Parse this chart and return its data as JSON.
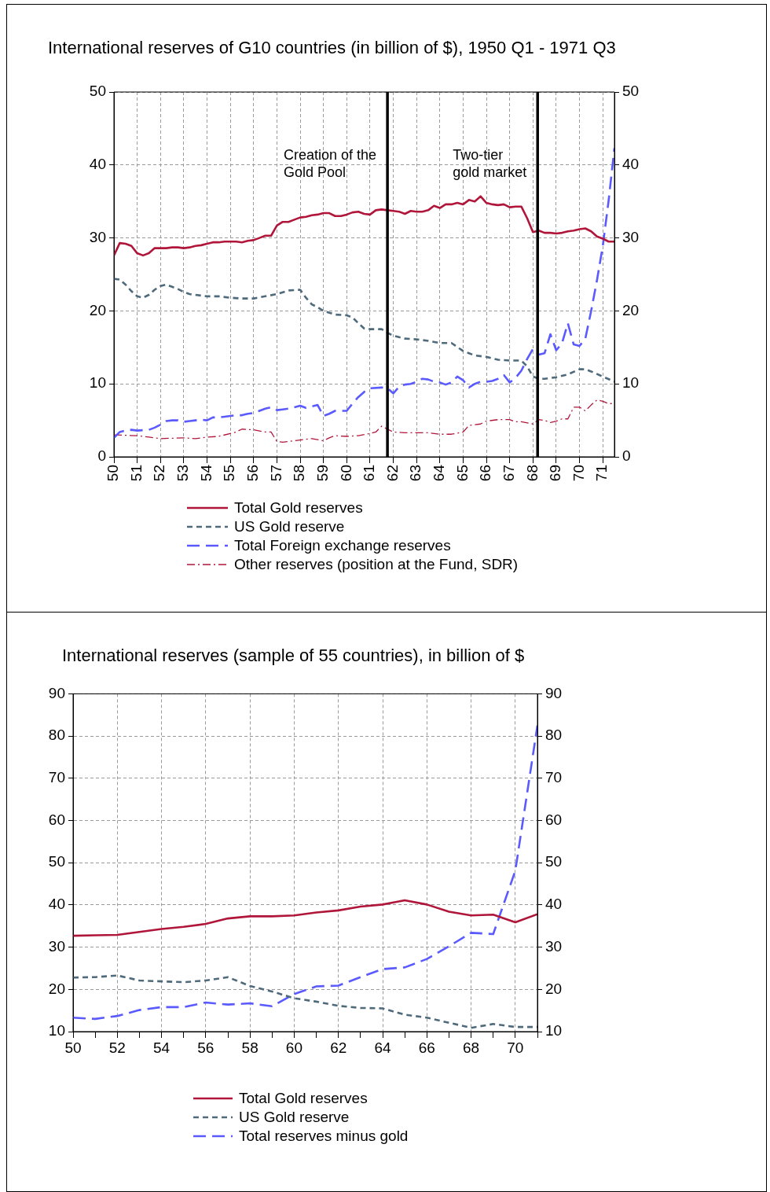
{
  "chart_data": [
    {
      "type": "line",
      "title": "International reserves of G10 countries (in billion of $), 1950 Q1 - 1971 Q3",
      "xlim": [
        1950,
        1971.5
      ],
      "xticks": [
        {
          "value": 1950,
          "label": "50"
        },
        {
          "value": 1951,
          "label": "51"
        },
        {
          "value": 1952,
          "label": "52"
        },
        {
          "value": 1953,
          "label": "53"
        },
        {
          "value": 1954,
          "label": "54"
        },
        {
          "value": 1955,
          "label": "55"
        },
        {
          "value": 1956,
          "label": "56"
        },
        {
          "value": 1957,
          "label": "57"
        },
        {
          "value": 1958,
          "label": "58"
        },
        {
          "value": 1959,
          "label": "59"
        },
        {
          "value": 1960,
          "label": "60"
        },
        {
          "value": 1961,
          "label": "61"
        },
        {
          "value": 1962,
          "label": "62"
        },
        {
          "value": 1963,
          "label": "63"
        },
        {
          "value": 1964,
          "label": "64"
        },
        {
          "value": 1965,
          "label": "65"
        },
        {
          "value": 1966,
          "label": "66"
        },
        {
          "value": 1967,
          "label": "67"
        },
        {
          "value": 1968,
          "label": "68"
        },
        {
          "value": 1969,
          "label": "69"
        },
        {
          "value": 1970,
          "label": "70"
        },
        {
          "value": 1971,
          "label": "71"
        }
      ],
      "ylim": [
        0,
        50
      ],
      "yticks": [
        0,
        10,
        20,
        30,
        40,
        50
      ],
      "y2lim": [
        0,
        50
      ],
      "y2ticks": [
        0,
        10,
        20,
        30,
        40,
        50
      ],
      "grid": true,
      "legend": "bottom",
      "ref_lines": [
        {
          "axis": "x",
          "value": 1961.75,
          "label": "Creation of the\nGold Pool",
          "color": "#000000"
        },
        {
          "axis": "x",
          "value": 1968.2,
          "label": "Two-tier\ngold market",
          "color": "#000000"
        }
      ],
      "series": [
        {
          "name": "Total Gold reserves",
          "color": "#b0163a",
          "line_style": "solid",
          "x": [
            1950,
            1950.25,
            1950.5,
            1950.75,
            1951,
            1951.25,
            1951.5,
            1951.75,
            1952,
            1952.25,
            1952.5,
            1952.75,
            1953,
            1953.25,
            1953.5,
            1953.75,
            1954,
            1954.25,
            1954.5,
            1954.75,
            1955,
            1955.25,
            1955.5,
            1955.75,
            1956,
            1956.25,
            1956.5,
            1956.75,
            1957,
            1957.25,
            1957.5,
            1957.75,
            1958,
            1958.25,
            1958.5,
            1958.75,
            1959,
            1959.25,
            1959.5,
            1959.75,
            1960,
            1960.25,
            1960.5,
            1960.75,
            1961,
            1961.25,
            1961.5,
            1961.75,
            1962,
            1962.25,
            1962.5,
            1962.75,
            1963,
            1963.25,
            1963.5,
            1963.75,
            1964,
            1964.25,
            1964.5,
            1964.75,
            1965,
            1965.25,
            1965.5,
            1965.75,
            1966,
            1966.25,
            1966.5,
            1966.75,
            1967,
            1967.25,
            1967.5,
            1967.75,
            1968,
            1968.25,
            1968.5,
            1968.75,
            1969,
            1969.25,
            1969.5,
            1969.75,
            1970,
            1970.25,
            1970.5,
            1970.75,
            1971,
            1971.25,
            1971.5
          ],
          "values": [
            27.6,
            29.3,
            29.2,
            28.9,
            27.9,
            27.6,
            27.9,
            28.6,
            28.6,
            28.6,
            28.7,
            28.7,
            28.6,
            28.7,
            28.9,
            29.0,
            29.2,
            29.4,
            29.4,
            29.5,
            29.5,
            29.5,
            29.4,
            29.6,
            29.7,
            30.0,
            30.3,
            30.3,
            31.7,
            32.2,
            32.2,
            32.5,
            32.8,
            32.9,
            33.1,
            33.2,
            33.4,
            33.4,
            33.0,
            33.0,
            33.2,
            33.5,
            33.6,
            33.3,
            33.2,
            33.8,
            33.9,
            33.8,
            33.7,
            33.6,
            33.3,
            33.7,
            33.6,
            33.6,
            33.8,
            34.4,
            34.1,
            34.6,
            34.6,
            34.8,
            34.6,
            35.2,
            35.0,
            35.7,
            34.8,
            34.6,
            34.5,
            34.6,
            34.2,
            34.3,
            34.3,
            32.7,
            30.8,
            31.0,
            30.7,
            30.7,
            30.6,
            30.7,
            30.9,
            31.0,
            31.2,
            31.3,
            30.9,
            30.2,
            29.9,
            29.5,
            29.5
          ]
        },
        {
          "name": "US Gold reserve",
          "color": "#4f6a7a",
          "line_style": "dotted",
          "x": [
            1950,
            1950.25,
            1950.5,
            1950.75,
            1951,
            1951.25,
            1951.5,
            1951.75,
            1952,
            1952.25,
            1952.5,
            1952.75,
            1953,
            1953.25,
            1953.5,
            1953.75,
            1954,
            1954.5,
            1955,
            1955.5,
            1956,
            1956.5,
            1957,
            1957.5,
            1958,
            1958.25,
            1958.5,
            1958.75,
            1959,
            1959.5,
            1960,
            1960.25,
            1960.5,
            1960.75,
            1961,
            1961.5,
            1961.75,
            1962,
            1962.5,
            1963,
            1963.5,
            1964,
            1964.5,
            1965,
            1965.25,
            1965.5,
            1966,
            1966.5,
            1967,
            1967.5,
            1967.75,
            1968,
            1968.25,
            1968.5,
            1969,
            1969.5,
            1970,
            1970.25,
            1970.5,
            1971,
            1971.5
          ],
          "values": [
            24.4,
            24.3,
            23.6,
            22.7,
            22.0,
            21.8,
            22.2,
            22.9,
            23.4,
            23.6,
            23.3,
            23.0,
            22.6,
            22.3,
            22.2,
            22.1,
            22.0,
            22.0,
            21.8,
            21.7,
            21.7,
            22.0,
            22.3,
            22.8,
            22.9,
            21.8,
            20.9,
            20.5,
            20.0,
            19.5,
            19.4,
            19.1,
            18.3,
            17.6,
            17.5,
            17.5,
            17.0,
            16.6,
            16.2,
            16.1,
            15.9,
            15.6,
            15.6,
            14.5,
            14.2,
            13.9,
            13.7,
            13.3,
            13.2,
            13.2,
            12.4,
            11.0,
            10.7,
            10.7,
            10.9,
            11.3,
            12.0,
            12.0,
            11.7,
            11.0,
            10.3
          ]
        },
        {
          "name": "Total Foreign exchange reserves",
          "color": "#5a5aff",
          "line_style": "dashed",
          "x": [
            1950,
            1950.25,
            1950.5,
            1950.75,
            1951,
            1951.5,
            1951.75,
            1952,
            1952.25,
            1952.5,
            1952.75,
            1953,
            1953.25,
            1953.5,
            1953.75,
            1954,
            1954.25,
            1954.5,
            1954.75,
            1955,
            1955.25,
            1955.5,
            1955.75,
            1956,
            1956.25,
            1956.5,
            1956.75,
            1957,
            1957.25,
            1957.5,
            1957.75,
            1958,
            1958.25,
            1958.5,
            1958.75,
            1959,
            1959.25,
            1959.5,
            1959.75,
            1960,
            1960.25,
            1960.5,
            1960.75,
            1961,
            1961.5,
            1961.75,
            1962,
            1962.25,
            1962.5,
            1962.75,
            1963,
            1963.25,
            1963.5,
            1963.75,
            1964,
            1964.25,
            1964.5,
            1964.75,
            1965,
            1965.25,
            1965.5,
            1965.75,
            1966,
            1966.25,
            1966.5,
            1966.75,
            1967,
            1967.25,
            1967.5,
            1967.75,
            1968,
            1968.25,
            1968.5,
            1968.75,
            1969,
            1969.25,
            1969.5,
            1969.75,
            1970,
            1970.25,
            1970.5,
            1970.75,
            1971,
            1971.25,
            1971.5
          ],
          "values": [
            2.6,
            3.4,
            3.6,
            3.7,
            3.6,
            3.7,
            4.0,
            4.4,
            4.9,
            5.0,
            5.0,
            4.8,
            4.9,
            5.0,
            5.1,
            5.0,
            5.4,
            5.4,
            5.5,
            5.6,
            5.7,
            5.7,
            5.9,
            6.0,
            6.3,
            6.6,
            6.8,
            6.4,
            6.5,
            6.6,
            6.8,
            7.0,
            6.7,
            6.9,
            7.1,
            5.6,
            5.9,
            6.3,
            6.3,
            6.3,
            7.3,
            8.2,
            8.9,
            9.4,
            9.5,
            9.4,
            8.7,
            9.6,
            9.9,
            10.0,
            10.3,
            10.7,
            10.6,
            10.3,
            10.2,
            9.9,
            10.2,
            11.0,
            10.5,
            9.5,
            10.0,
            10.3,
            10.3,
            10.4,
            10.7,
            11.2,
            10.2,
            10.8,
            11.8,
            13.4,
            14.8,
            14.0,
            14.2,
            16.8,
            14.6,
            15.6,
            18.3,
            15.4,
            15.2,
            16.2,
            20.0,
            24.2,
            28.9,
            35.1,
            42.3
          ]
        },
        {
          "name": "Other reserves (position at the Fund, SDR)",
          "color": "#b0163a",
          "line_style": "dashdot",
          "x": [
            1950,
            1951,
            1951.5,
            1952,
            1953,
            1953.5,
            1954,
            1954.5,
            1955,
            1955.25,
            1955.5,
            1956,
            1956.5,
            1956.75,
            1957,
            1957.25,
            1957.5,
            1958,
            1958.5,
            1959,
            1959.25,
            1959.5,
            1960,
            1960.5,
            1961,
            1961.25,
            1961.5,
            1961.75,
            1962,
            1962.5,
            1963,
            1963.5,
            1964,
            1964.5,
            1965,
            1965.25,
            1965.75,
            1966,
            1966.5,
            1967,
            1967.25,
            1967.5,
            1968,
            1968.25,
            1968.5,
            1968.75,
            1969,
            1969.25,
            1969.5,
            1969.75,
            1970,
            1970.25,
            1970.5,
            1970.75,
            1971,
            1971.25,
            1971.5
          ],
          "values": [
            3.0,
            2.9,
            2.7,
            2.5,
            2.6,
            2.5,
            2.7,
            2.8,
            3.2,
            3.4,
            3.8,
            3.7,
            3.4,
            3.4,
            2.1,
            2.0,
            2.1,
            2.3,
            2.5,
            2.2,
            2.6,
            2.9,
            2.8,
            2.9,
            3.2,
            3.4,
            4.2,
            3.8,
            3.4,
            3.3,
            3.3,
            3.3,
            3.1,
            3.1,
            3.4,
            4.3,
            4.5,
            4.9,
            5.1,
            5.1,
            4.8,
            4.8,
            4.5,
            5.1,
            5.0,
            4.7,
            4.9,
            5.2,
            5.2,
            6.8,
            6.8,
            6.3,
            7.1,
            7.8,
            7.6,
            7.3,
            7.3
          ]
        }
      ]
    },
    {
      "type": "line",
      "title": "International reserves (sample of 55 countries), in billion of $",
      "xlim": [
        1950,
        1971
      ],
      "xticks": [
        {
          "value": 1950,
          "label": "50"
        },
        {
          "value": 1951,
          "label": null
        },
        {
          "value": 1952,
          "label": "52"
        },
        {
          "value": 1953,
          "label": null
        },
        {
          "value": 1954,
          "label": "54"
        },
        {
          "value": 1955,
          "label": null
        },
        {
          "value": 1956,
          "label": "56"
        },
        {
          "value": 1957,
          "label": null
        },
        {
          "value": 1958,
          "label": "58"
        },
        {
          "value": 1959,
          "label": null
        },
        {
          "value": 1960,
          "label": "60"
        },
        {
          "value": 1961,
          "label": null
        },
        {
          "value": 1962,
          "label": "62"
        },
        {
          "value": 1963,
          "label": null
        },
        {
          "value": 1964,
          "label": "64"
        },
        {
          "value": 1965,
          "label": null
        },
        {
          "value": 1966,
          "label": "66"
        },
        {
          "value": 1967,
          "label": null
        },
        {
          "value": 1968,
          "label": "68"
        },
        {
          "value": 1969,
          "label": null
        },
        {
          "value": 1970,
          "label": "70"
        },
        {
          "value": 1971,
          "label": null
        }
      ],
      "ylim": [
        10,
        90
      ],
      "yticks": [
        10,
        20,
        30,
        40,
        50,
        60,
        70,
        80,
        90
      ],
      "y2lim": [
        10,
        90
      ],
      "y2ticks": [
        10,
        20,
        30,
        40,
        50,
        60,
        70,
        80,
        90
      ],
      "grid": true,
      "legend": "bottom",
      "series": [
        {
          "name": "Total Gold reserves",
          "color": "#b0163a",
          "line_style": "solid",
          "x": [
            1950,
            1951,
            1952,
            1953,
            1954,
            1955,
            1956,
            1957,
            1958,
            1959,
            1960,
            1961,
            1962,
            1963,
            1964,
            1965,
            1966,
            1967,
            1968,
            1969,
            1970,
            1971
          ],
          "values": [
            32.7,
            32.8,
            32.9,
            33.6,
            34.3,
            34.8,
            35.5,
            36.8,
            37.3,
            37.3,
            37.5,
            38.2,
            38.7,
            39.6,
            40.1,
            41.1,
            40.1,
            38.4,
            37.5,
            37.7,
            35.9,
            37.8
          ]
        },
        {
          "name": "US Gold reserve",
          "color": "#4f6a7a",
          "line_style": "dotted",
          "x": [
            1950,
            1951,
            1952,
            1953,
            1954,
            1955,
            1956,
            1957,
            1958,
            1959,
            1960,
            1961,
            1962,
            1963,
            1964,
            1965,
            1966,
            1967,
            1968,
            1969,
            1970,
            1971
          ],
          "values": [
            22.8,
            22.9,
            23.3,
            22.1,
            21.9,
            21.7,
            22.1,
            22.9,
            20.8,
            19.5,
            17.9,
            17.1,
            16.1,
            15.6,
            15.5,
            14.0,
            13.3,
            12.1,
            10.9,
            11.8,
            11.1,
            11.1
          ]
        },
        {
          "name": "Total reserves minus gold",
          "color": "#5a5aff",
          "line_style": "dashed",
          "x": [
            1950,
            1951,
            1952,
            1953,
            1954,
            1955,
            1956,
            1957,
            1958,
            1959,
            1960,
            1961,
            1962,
            1963,
            1964,
            1965,
            1966,
            1967,
            1968,
            1969,
            1970,
            1971
          ],
          "values": [
            13.3,
            13.0,
            13.7,
            15.1,
            15.8,
            15.8,
            16.9,
            16.4,
            16.7,
            16.0,
            18.9,
            20.7,
            20.9,
            22.9,
            24.8,
            25.2,
            27.2,
            30.2,
            33.4,
            33.1,
            48.1,
            82.5
          ]
        }
      ]
    }
  ]
}
